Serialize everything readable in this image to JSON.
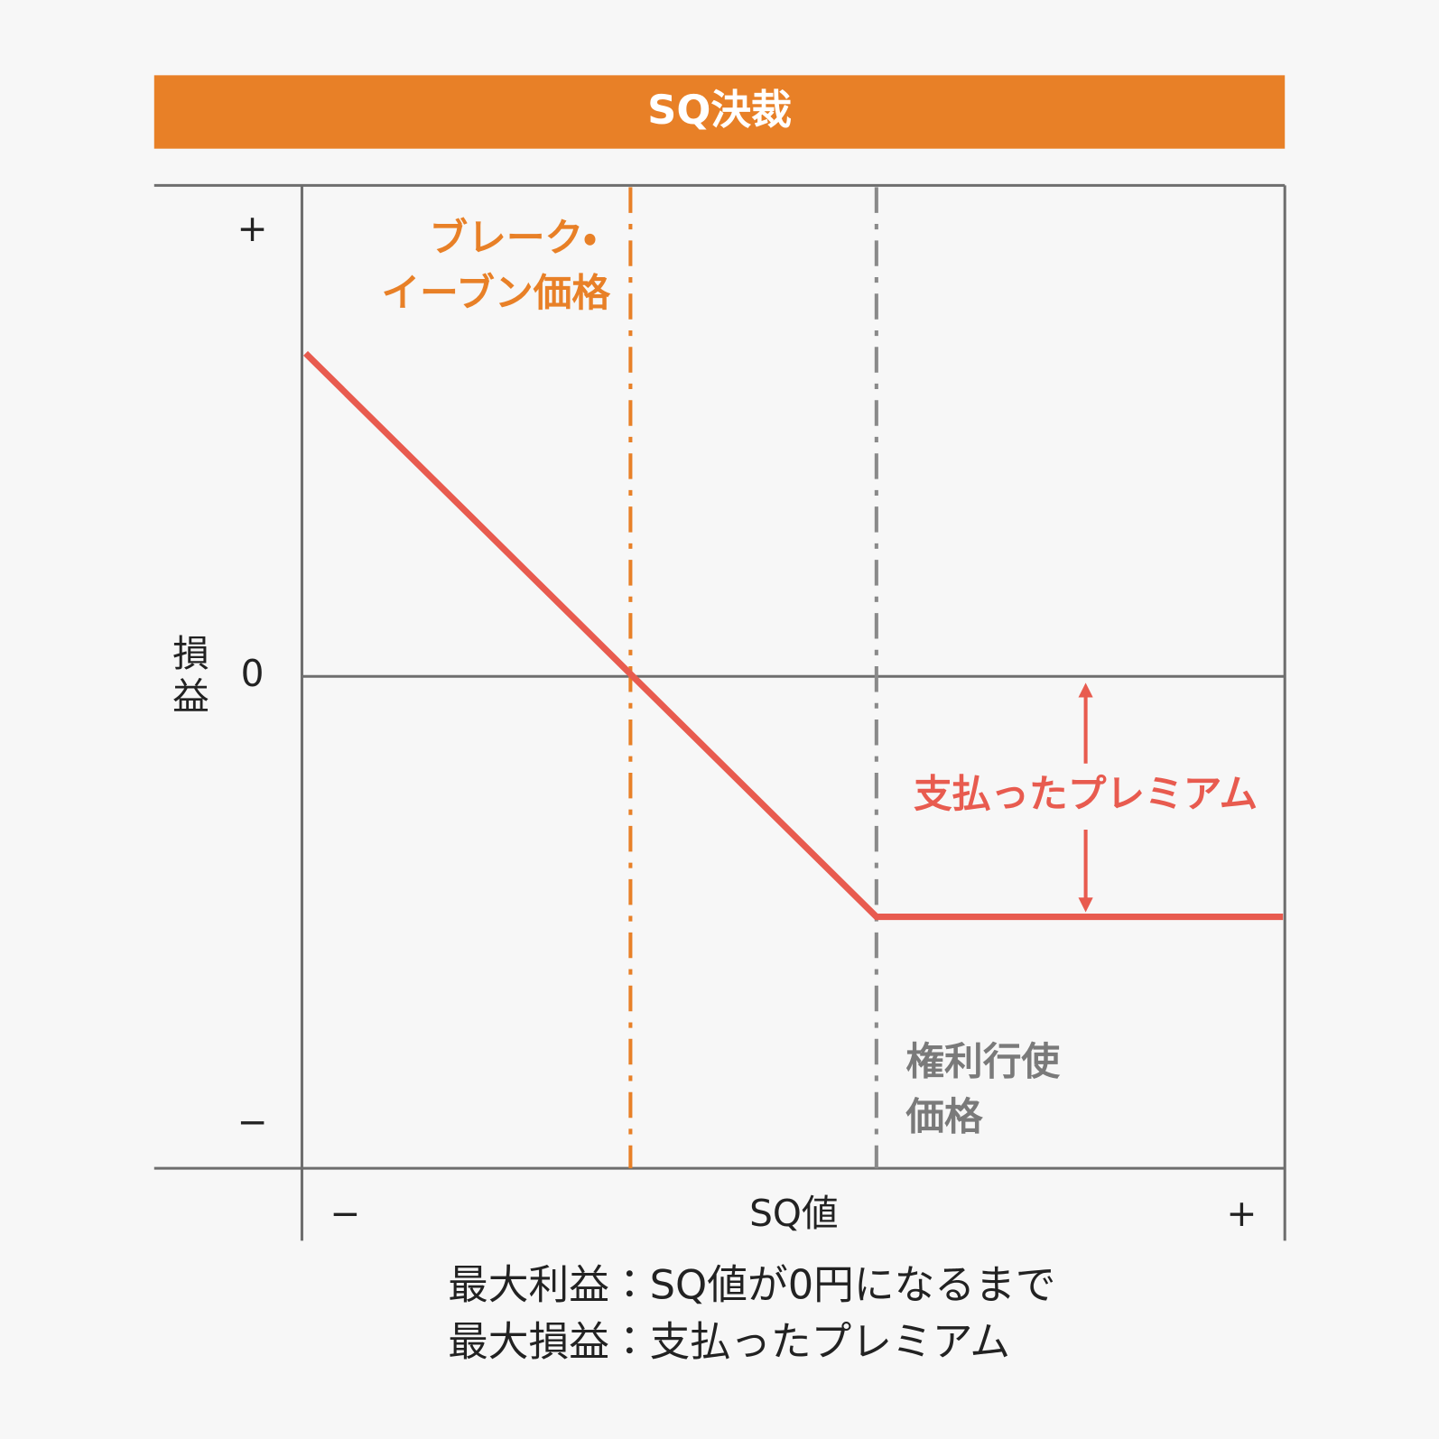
{
  "header": {
    "title": "SQ決裁"
  },
  "y_axis": {
    "label": [
      "損",
      "益"
    ],
    "plus": "+",
    "zero": "0",
    "minus": "−"
  },
  "x_axis": {
    "label": "SQ値",
    "minus": "−",
    "plus": "+"
  },
  "annotations": {
    "break_even": [
      "ブレーク・",
      "イーブン価格"
    ],
    "premium": "支払ったプレミアム",
    "strike": [
      "権利行使",
      "価格"
    ]
  },
  "footer": [
    "最大利益：SQ値が0円になるまで",
    "最大損益：支払ったプレミアム"
  ]
}
